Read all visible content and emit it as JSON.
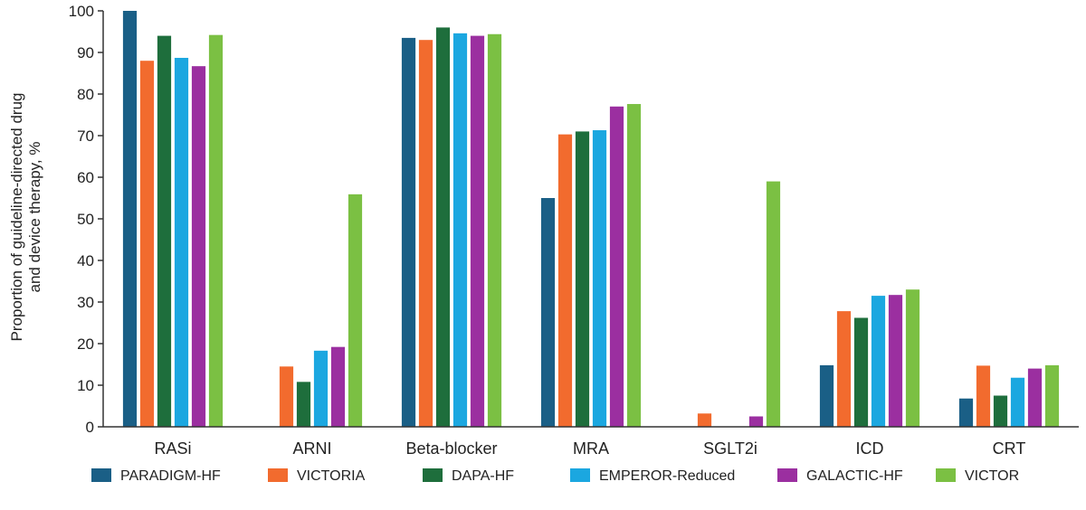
{
  "chart_data": {
    "type": "bar",
    "title": "",
    "xlabel": "",
    "ylabel_lines": [
      "Proportion of guideline-directed drug",
      "and device therapy, %"
    ],
    "ylim": [
      0,
      100
    ],
    "yticks": [
      0,
      10,
      20,
      30,
      40,
      50,
      60,
      70,
      80,
      90,
      100
    ],
    "grid": false,
    "legend_position": "bottom",
    "categories": [
      "RASi",
      "ARNI",
      "Beta-blocker",
      "MRA",
      "SGLT2i",
      "ICD",
      "CRT"
    ],
    "series": [
      {
        "name": "PARADIGM-HF",
        "color": "#1a5f86",
        "values": [
          100,
          null,
          93.5,
          55,
          null,
          14.8,
          6.8
        ]
      },
      {
        "name": "VICTORIA",
        "color": "#f26b2e",
        "values": [
          88,
          14.5,
          93,
          70.3,
          3.2,
          27.8,
          14.7
        ]
      },
      {
        "name": "DAPA-HF",
        "color": "#1e6e3c",
        "values": [
          94,
          10.8,
          96,
          71,
          null,
          26.2,
          7.5
        ]
      },
      {
        "name": "EMPEROR-Reduced",
        "color": "#1ba7e0",
        "values": [
          88.7,
          18.3,
          94.6,
          71.3,
          null,
          31.5,
          11.8
        ]
      },
      {
        "name": "GALACTIC-HF",
        "color": "#9b2fa0",
        "values": [
          86.7,
          19.2,
          94,
          77,
          2.5,
          31.7,
          14
        ]
      },
      {
        "name": "VICTOR",
        "color": "#7bc043",
        "values": [
          94.2,
          55.9,
          94.4,
          77.6,
          59,
          33,
          14.8
        ]
      }
    ]
  }
}
